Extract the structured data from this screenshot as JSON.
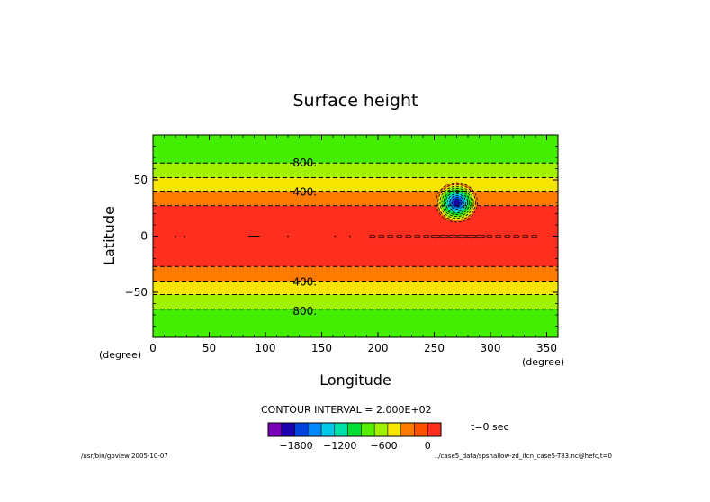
{
  "chart_data": {
    "type": "heatmap",
    "title": "Surface height",
    "xlabel": "Longitude",
    "ylabel": "Latitude",
    "x_unit_left": "(degree)",
    "x_unit_right": "(degree)",
    "xlim": [
      0,
      360
    ],
    "ylim": [
      -90,
      90
    ],
    "xticks": [
      0,
      50,
      100,
      150,
      200,
      250,
      300,
      350
    ],
    "xtick_labels": [
      "0",
      "50",
      "100",
      "150",
      "200",
      "250",
      "300",
      "350"
    ],
    "yticks": [
      50,
      0,
      -50
    ],
    "ytick_labels": [
      "50",
      "0",
      "−50"
    ],
    "grid": false,
    "contour_interval_text": "CONTOUR INTERVAL = 2.000E+02",
    "time_text": "t=0 sec",
    "colorbar": {
      "levels": [
        -2000,
        -1800,
        -1600,
        -1400,
        -1200,
        -1000,
        -800,
        -600,
        -400,
        -200,
        0
      ],
      "colors": [
        "#7a00b8",
        "#1c00b0",
        "#0044dd",
        "#0088ff",
        "#00c8e6",
        "#00e0a6",
        "#00dd33",
        "#55ee00",
        "#a0f000",
        "#f5e500",
        "#ff7a00",
        "#ff5000",
        "#ff2e1e"
      ],
      "tick_values": [
        -1800,
        -1200,
        -600,
        0
      ],
      "tick_labels": [
        "−1800",
        "−1200",
        "−600",
        "0"
      ]
    },
    "zonal_bands": [
      {
        "lat_min": -90,
        "lat_max": -65,
        "value_range": [
          -1000,
          -800
        ],
        "color": "#44ee00"
      },
      {
        "lat_min": -65,
        "lat_max": -52,
        "value_range": [
          -800,
          -600
        ],
        "color": "#a0f000"
      },
      {
        "lat_min": -52,
        "lat_max": -40,
        "value_range": [
          -600,
          -400
        ],
        "color": "#f5e500"
      },
      {
        "lat_min": -40,
        "lat_max": -27,
        "value_range": [
          -400,
          -200
        ],
        "color": "#ff7a00"
      },
      {
        "lat_min": -27,
        "lat_max": 27,
        "value_range": [
          -200,
          0
        ],
        "color": "#ff2e1e"
      },
      {
        "lat_min": 27,
        "lat_max": 40,
        "value_range": [
          -400,
          -200
        ],
        "color": "#ff7a00"
      },
      {
        "lat_min": 40,
        "lat_max": 52,
        "value_range": [
          -600,
          -400
        ],
        "color": "#f5e500"
      },
      {
        "lat_min": 52,
        "lat_max": 65,
        "value_range": [
          -800,
          -600
        ],
        "color": "#a0f000"
      },
      {
        "lat_min": 65,
        "lat_max": 90,
        "value_range": [
          -1000,
          -800
        ],
        "color": "#44ee00"
      }
    ],
    "depression": {
      "center_lon": 270,
      "center_lat": 30,
      "min_value": -2000
    },
    "contour_labels": [
      {
        "lon": 135,
        "lat": 66,
        "text": "800."
      },
      {
        "lon": 135,
        "lat": 40,
        "text": "400."
      },
      {
        "lon": 135,
        "lat": -40,
        "text": "400."
      },
      {
        "lon": 135,
        "lat": -66,
        "text": "800."
      }
    ]
  },
  "footer": {
    "left": "/usr/bin/gpview  2005-10-07",
    "right": "../case5_data/spshallow-zd_ifcn_case5-T83.nc@hefc,t=0"
  }
}
